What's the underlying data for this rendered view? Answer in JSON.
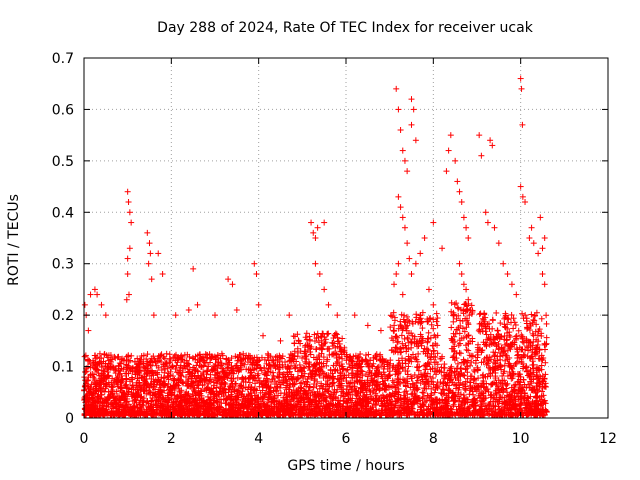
{
  "chart_data": {
    "type": "scatter",
    "title": "Day 288 of 2024, Rate Of TEC Index for receiver ucak",
    "xlabel": "GPS time / hours",
    "ylabel": "ROTI / TECUs",
    "xlim": [
      0,
      12
    ],
    "ylim": [
      0,
      0.7
    ],
    "xticks": [
      0,
      2,
      4,
      6,
      8,
      10,
      12
    ],
    "yticks": [
      0,
      0.1,
      0.2,
      0.3,
      0.4,
      0.5,
      0.6,
      0.7
    ],
    "grid": true,
    "marker": "+",
    "color": "#ff0000",
    "x_range_of_data": [
      0,
      10.6
    ],
    "points": [
      [
        0.02,
        0.22
      ],
      [
        0.05,
        0.2
      ],
      [
        0.1,
        0.17
      ],
      [
        0.15,
        0.24
      ],
      [
        0.25,
        0.25
      ],
      [
        0.3,
        0.24
      ],
      [
        0.4,
        0.22
      ],
      [
        0.5,
        0.2
      ],
      [
        1.0,
        0.44
      ],
      [
        1.02,
        0.42
      ],
      [
        1.05,
        0.4
      ],
      [
        1.08,
        0.38
      ],
      [
        1.0,
        0.31
      ],
      [
        1.05,
        0.33
      ],
      [
        1.0,
        0.28
      ],
      [
        1.03,
        0.24
      ],
      [
        0.98,
        0.23
      ],
      [
        1.45,
        0.36
      ],
      [
        1.5,
        0.34
      ],
      [
        1.52,
        0.32
      ],
      [
        1.48,
        0.3
      ],
      [
        1.55,
        0.27
      ],
      [
        1.6,
        0.2
      ],
      [
        1.7,
        0.32
      ],
      [
        1.8,
        0.28
      ],
      [
        2.1,
        0.2
      ],
      [
        2.4,
        0.21
      ],
      [
        2.5,
        0.29
      ],
      [
        2.6,
        0.22
      ],
      [
        3.0,
        0.2
      ],
      [
        3.3,
        0.27
      ],
      [
        3.4,
        0.26
      ],
      [
        3.5,
        0.21
      ],
      [
        3.9,
        0.3
      ],
      [
        3.95,
        0.28
      ],
      [
        4.0,
        0.22
      ],
      [
        4.1,
        0.16
      ],
      [
        4.5,
        0.15
      ],
      [
        4.7,
        0.2
      ],
      [
        5.2,
        0.38
      ],
      [
        5.25,
        0.36
      ],
      [
        5.3,
        0.35
      ],
      [
        5.35,
        0.37
      ],
      [
        5.5,
        0.38
      ],
      [
        5.3,
        0.3
      ],
      [
        5.4,
        0.28
      ],
      [
        5.5,
        0.25
      ],
      [
        5.6,
        0.22
      ],
      [
        5.8,
        0.2
      ],
      [
        6.2,
        0.2
      ],
      [
        6.5,
        0.18
      ],
      [
        6.8,
        0.17
      ],
      [
        7.15,
        0.64
      ],
      [
        7.2,
        0.6
      ],
      [
        7.25,
        0.56
      ],
      [
        7.3,
        0.52
      ],
      [
        7.35,
        0.5
      ],
      [
        7.4,
        0.48
      ],
      [
        7.5,
        0.62
      ],
      [
        7.55,
        0.6
      ],
      [
        7.5,
        0.57
      ],
      [
        7.6,
        0.54
      ],
      [
        7.2,
        0.43
      ],
      [
        7.25,
        0.41
      ],
      [
        7.3,
        0.39
      ],
      [
        7.35,
        0.37
      ],
      [
        7.4,
        0.34
      ],
      [
        7.45,
        0.31
      ],
      [
        7.5,
        0.28
      ],
      [
        7.6,
        0.3
      ],
      [
        7.7,
        0.32
      ],
      [
        7.8,
        0.35
      ],
      [
        7.9,
        0.25
      ],
      [
        8.0,
        0.22
      ],
      [
        7.1,
        0.26
      ],
      [
        7.15,
        0.28
      ],
      [
        7.2,
        0.3
      ],
      [
        7.3,
        0.24
      ],
      [
        8.0,
        0.38
      ],
      [
        8.2,
        0.33
      ],
      [
        8.3,
        0.48
      ],
      [
        8.35,
        0.52
      ],
      [
        8.4,
        0.55
      ],
      [
        8.5,
        0.5
      ],
      [
        8.55,
        0.46
      ],
      [
        8.6,
        0.44
      ],
      [
        8.65,
        0.42
      ],
      [
        8.7,
        0.39
      ],
      [
        8.75,
        0.37
      ],
      [
        8.8,
        0.35
      ],
      [
        8.6,
        0.3
      ],
      [
        8.65,
        0.28
      ],
      [
        8.7,
        0.26
      ],
      [
        8.75,
        0.25
      ],
      [
        8.8,
        0.23
      ],
      [
        8.85,
        0.21
      ],
      [
        9.05,
        0.55
      ],
      [
        9.3,
        0.54
      ],
      [
        9.35,
        0.53
      ],
      [
        9.1,
        0.51
      ],
      [
        9.2,
        0.4
      ],
      [
        9.25,
        0.38
      ],
      [
        9.4,
        0.37
      ],
      [
        9.5,
        0.34
      ],
      [
        9.6,
        0.3
      ],
      [
        9.7,
        0.28
      ],
      [
        9.8,
        0.26
      ],
      [
        9.9,
        0.24
      ],
      [
        10.0,
        0.66
      ],
      [
        10.02,
        0.64
      ],
      [
        10.04,
        0.57
      ],
      [
        10.0,
        0.45
      ],
      [
        10.05,
        0.43
      ],
      [
        10.1,
        0.42
      ],
      [
        10.2,
        0.35
      ],
      [
        10.25,
        0.37
      ],
      [
        10.3,
        0.34
      ],
      [
        10.4,
        0.32
      ],
      [
        10.45,
        0.39
      ],
      [
        10.5,
        0.33
      ],
      [
        10.55,
        0.35
      ],
      [
        10.5,
        0.28
      ],
      [
        10.55,
        0.26
      ]
    ]
  }
}
